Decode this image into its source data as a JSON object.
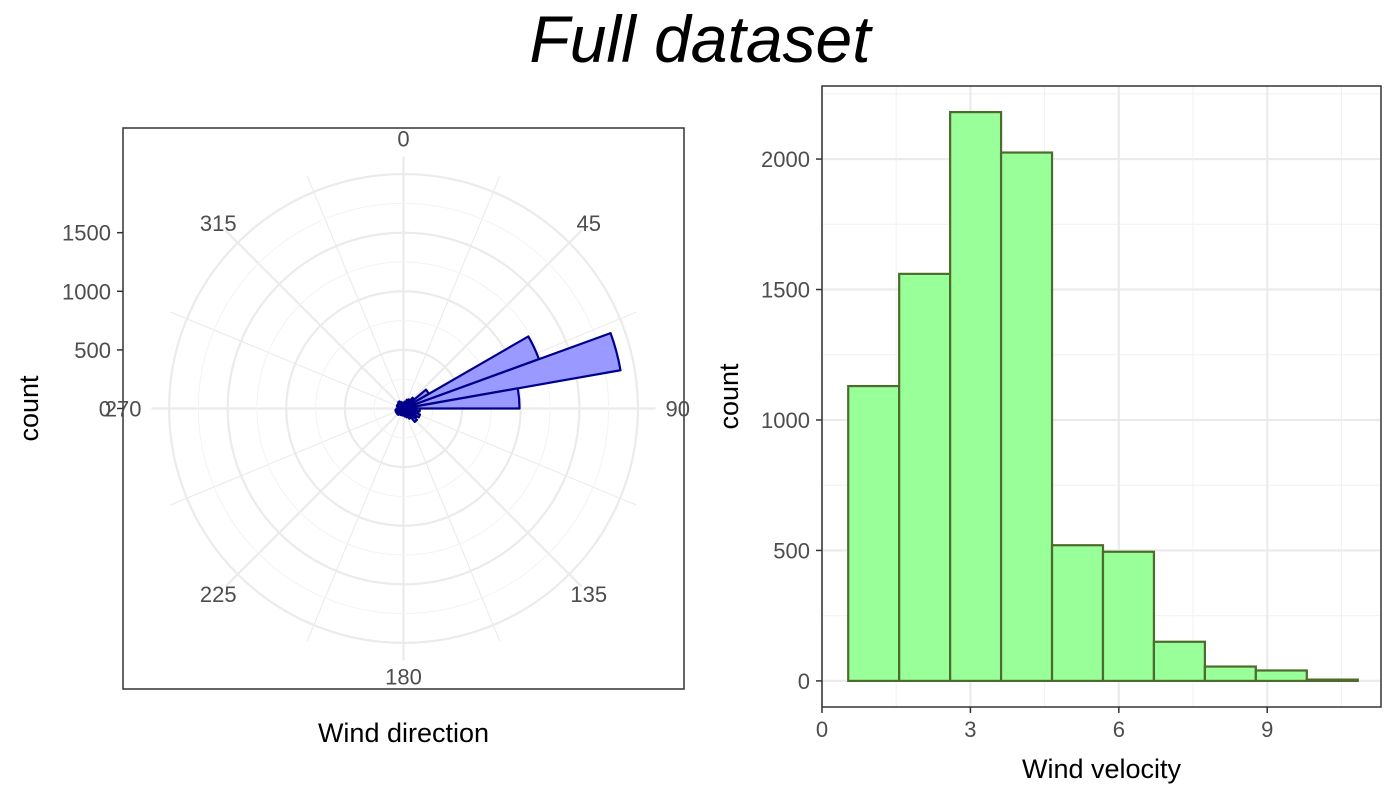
{
  "page": {
    "title": "Full dataset"
  },
  "chart_data": [
    {
      "type": "polar-bar",
      "title": "",
      "xlabel": "Wind direction",
      "ylabel": "count",
      "angle_ticks": [
        "0",
        "45",
        "90",
        "135",
        "180",
        "225",
        "270",
        "315"
      ],
      "radial_ticks": [
        "0",
        "500",
        "1000",
        "1500"
      ],
      "radial_tick_values": [
        0,
        500,
        1000,
        1500
      ],
      "rmax": 2150,
      "grid": true,
      "fill_color": "#9999ff",
      "stroke_color": "#00008b",
      "bars": [
        {
          "start": 0,
          "end": 10,
          "value": 40
        },
        {
          "start": 10,
          "end": 20,
          "value": 60
        },
        {
          "start": 20,
          "end": 30,
          "value": 80
        },
        {
          "start": 30,
          "end": 40,
          "value": 90
        },
        {
          "start": 40,
          "end": 50,
          "value": 120
        },
        {
          "start": 50,
          "end": 60,
          "value": 250
        },
        {
          "start": 60,
          "end": 70,
          "value": 1230
        },
        {
          "start": 70,
          "end": 80,
          "value": 1880
        },
        {
          "start": 80,
          "end": 90,
          "value": 990
        },
        {
          "start": 90,
          "end": 100,
          "value": 140
        },
        {
          "start": 100,
          "end": 110,
          "value": 130
        },
        {
          "start": 110,
          "end": 120,
          "value": 150
        },
        {
          "start": 120,
          "end": 130,
          "value": 130
        },
        {
          "start": 130,
          "end": 140,
          "value": 150
        },
        {
          "start": 140,
          "end": 150,
          "value": 100
        },
        {
          "start": 150,
          "end": 160,
          "value": 80
        },
        {
          "start": 160,
          "end": 170,
          "value": 70
        },
        {
          "start": 170,
          "end": 180,
          "value": 60
        },
        {
          "start": 180,
          "end": 190,
          "value": 60
        },
        {
          "start": 190,
          "end": 200,
          "value": 50
        },
        {
          "start": 200,
          "end": 210,
          "value": 60
        },
        {
          "start": 210,
          "end": 220,
          "value": 60
        },
        {
          "start": 220,
          "end": 230,
          "value": 70
        },
        {
          "start": 230,
          "end": 240,
          "value": 70
        },
        {
          "start": 240,
          "end": 250,
          "value": 70
        },
        {
          "start": 250,
          "end": 260,
          "value": 70
        },
        {
          "start": 260,
          "end": 270,
          "value": 60
        },
        {
          "start": 270,
          "end": 280,
          "value": 50
        },
        {
          "start": 280,
          "end": 290,
          "value": 50
        },
        {
          "start": 290,
          "end": 300,
          "value": 60
        },
        {
          "start": 300,
          "end": 310,
          "value": 60
        },
        {
          "start": 310,
          "end": 320,
          "value": 60
        },
        {
          "start": 320,
          "end": 330,
          "value": 70
        },
        {
          "start": 330,
          "end": 340,
          "value": 60
        },
        {
          "start": 340,
          "end": 350,
          "value": 50
        },
        {
          "start": 350,
          "end": 360,
          "value": 50
        }
      ]
    },
    {
      "type": "histogram",
      "title": "",
      "xlabel": "Wind velocity",
      "ylabel": "count",
      "xlim": [
        0,
        11.3
      ],
      "ylim": [
        -100,
        2280
      ],
      "xticks": [
        0,
        3,
        6,
        9
      ],
      "xtick_labels": [
        "0",
        "3",
        "6",
        "9"
      ],
      "yticks": [
        0,
        500,
        1000,
        1500,
        2000
      ],
      "ytick_labels": [
        "0",
        "500",
        "1000",
        "1500",
        "2000"
      ],
      "grid": true,
      "fill_color": "#99ff99",
      "stroke_color": "#4c6b2c",
      "bins": [
        {
          "x0": 0.53,
          "x1": 1.56,
          "count": 1130
        },
        {
          "x0": 1.56,
          "x1": 2.59,
          "count": 1560
        },
        {
          "x0": 2.59,
          "x1": 3.62,
          "count": 2180
        },
        {
          "x0": 3.62,
          "x1": 4.65,
          "count": 2025
        },
        {
          "x0": 4.65,
          "x1": 5.68,
          "count": 520
        },
        {
          "x0": 5.68,
          "x1": 6.71,
          "count": 495
        },
        {
          "x0": 6.71,
          "x1": 7.74,
          "count": 150
        },
        {
          "x0": 7.74,
          "x1": 8.77,
          "count": 55
        },
        {
          "x0": 8.77,
          "x1": 9.8,
          "count": 40
        },
        {
          "x0": 9.8,
          "x1": 10.83,
          "count": 5
        }
      ]
    }
  ]
}
